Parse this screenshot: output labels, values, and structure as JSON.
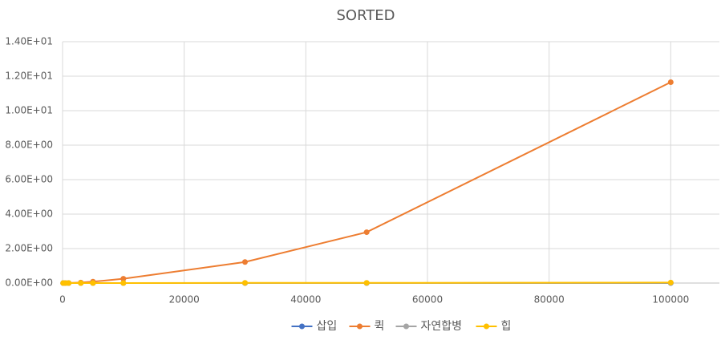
{
  "chart_data": {
    "type": "scatter-line",
    "title": "SORTED",
    "x": [
      100,
      500,
      1000,
      3000,
      5000,
      10000,
      30000,
      50000,
      100000
    ],
    "series": [
      {
        "name": "삽입",
        "color": "#4472c4",
        "values": [
          0,
          0,
          0,
          0,
          0,
          0,
          0,
          0,
          0
        ]
      },
      {
        "name": "퀵",
        "color": "#ed7d31",
        "values": [
          0.0001,
          0.001,
          0.004,
          0.03,
          0.08,
          0.25,
          1.22,
          2.95,
          11.65
        ]
      },
      {
        "name": "자연합병",
        "color": "#a5a5a5",
        "values": [
          0,
          0,
          0,
          0,
          0,
          0,
          0,
          0,
          0.01
        ]
      },
      {
        "name": "힙",
        "color": "#ffc000",
        "values": [
          0,
          0,
          0,
          0,
          0,
          0,
          0.01,
          0.01,
          0.03
        ]
      }
    ],
    "xlim": [
      0,
      108000
    ],
    "xticks": [
      0,
      20000,
      40000,
      60000,
      80000,
      100000
    ],
    "ylim": [
      0,
      14
    ],
    "yticks": [
      {
        "value": 0,
        "label": "0.00E+00"
      },
      {
        "value": 2,
        "label": "2.00E+00"
      },
      {
        "value": 4,
        "label": "4.00E+00"
      },
      {
        "value": 6,
        "label": "6.00E+00"
      },
      {
        "value": 8,
        "label": "8.00E+00"
      },
      {
        "value": 10,
        "label": "1.00E+01"
      },
      {
        "value": 12,
        "label": "1.20E+01"
      },
      {
        "value": 14,
        "label": "1.40E+01"
      }
    ],
    "grid": true,
    "legend": "bottom"
  }
}
